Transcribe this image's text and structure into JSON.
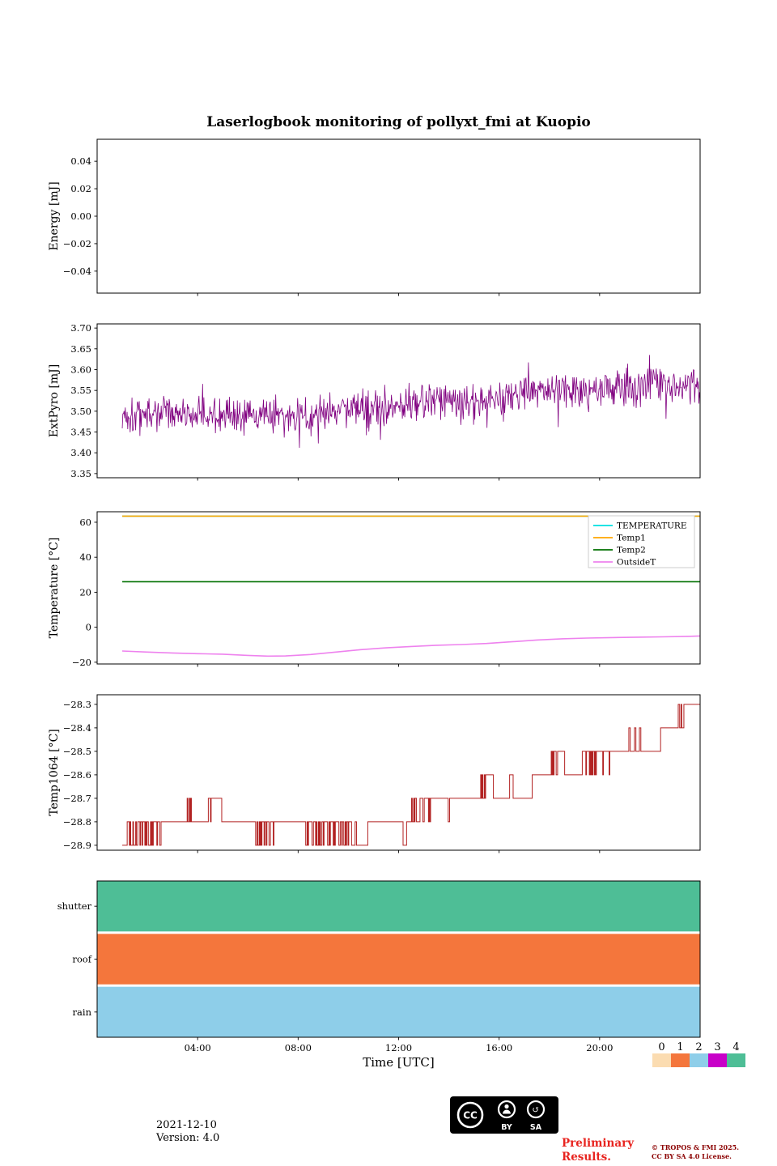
{
  "title": "Laserlogbook monitoring of pollyxt_fmi at Kuopio",
  "xaxis": {
    "label": "Time [UTC]",
    "range": [
      0,
      24
    ],
    "ticks": [
      4,
      8,
      12,
      16,
      20
    ],
    "tick_labels": [
      "04:00",
      "08:00",
      "12:00",
      "16:00",
      "20:00"
    ]
  },
  "chart_data": [
    {
      "type": "line",
      "name": "energy",
      "ylabel": "Energy [mJ]",
      "ylim": [
        -0.056,
        0.056
      ],
      "yticks": [
        0.04,
        0.02,
        0,
        -0.02,
        -0.04
      ],
      "ytick_labels": [
        "0.04",
        "0.02",
        "0.00",
        "−0.02",
        "−0.04"
      ],
      "series": []
    },
    {
      "type": "line",
      "name": "extpyro",
      "ylabel": "ExtPyro [mJ]",
      "ylim": [
        3.34,
        3.71
      ],
      "yticks": [
        3.7,
        3.65,
        3.6,
        3.55,
        3.5,
        3.45,
        3.4,
        3.35
      ],
      "ytick_labels": [
        "3.70",
        "3.65",
        "3.60",
        "3.55",
        "3.50",
        "3.45",
        "3.40",
        "3.35"
      ],
      "series": [
        {
          "name": "ExtPyro",
          "color": "#800080",
          "style": "noisy",
          "trend": [
            [
              1,
              3.49
            ],
            [
              3,
              3.5
            ],
            [
              5,
              3.49
            ],
            [
              7,
              3.485
            ],
            [
              8,
              3.49
            ],
            [
              10,
              3.505
            ],
            [
              12,
              3.52
            ],
            [
              14,
              3.525
            ],
            [
              16,
              3.535
            ],
            [
              18,
              3.55
            ],
            [
              20,
              3.555
            ],
            [
              22,
              3.565
            ],
            [
              24,
              3.56
            ]
          ],
          "noise_amp": 0.05,
          "spike_prob": 0.1,
          "spike_amp": 0.06,
          "points": 950,
          "seed": 1337,
          "value_range": [
            3.352,
            3.695
          ]
        }
      ]
    },
    {
      "type": "line",
      "name": "temperature",
      "ylabel": "Temperature [°C]",
      "ylim": [
        -21,
        66
      ],
      "yticks": [
        60,
        40,
        20,
        0,
        -20
      ],
      "ytick_labels": [
        "60",
        "40",
        "20",
        "0",
        "−20"
      ],
      "series": [
        {
          "name": "TEMPERATURE",
          "color": "#00dfe0",
          "style": "const",
          "value": 63.5
        },
        {
          "name": "Temp1",
          "color": "#ffa500",
          "style": "const",
          "value": 63.5
        },
        {
          "name": "Temp2",
          "color": "#007000",
          "style": "const",
          "value": 26.0
        },
        {
          "name": "OutsideT",
          "color": "#ee82ee",
          "style": "anchors",
          "anchors": [
            [
              1,
              -13.6
            ],
            [
              2,
              -14.2
            ],
            [
              3,
              -14.7
            ],
            [
              4,
              -15.1
            ],
            [
              5,
              -15.4
            ],
            [
              6,
              -16.1
            ],
            [
              6.8,
              -16.5
            ],
            [
              7.5,
              -16.4
            ],
            [
              8.5,
              -15.6
            ],
            [
              9.5,
              -14.2
            ],
            [
              10.5,
              -12.8
            ],
            [
              11.5,
              -11.8
            ],
            [
              12.5,
              -11.0
            ],
            [
              13.5,
              -10.3
            ],
            [
              14.5,
              -9.9
            ],
            [
              15.5,
              -9.3
            ],
            [
              16.5,
              -8.3
            ],
            [
              17.5,
              -7.3
            ],
            [
              18.5,
              -6.6
            ],
            [
              19.5,
              -6.2
            ],
            [
              20.5,
              -5.9
            ],
            [
              21.5,
              -5.7
            ],
            [
              22.5,
              -5.5
            ],
            [
              23.5,
              -5.2
            ],
            [
              24,
              -5.0
            ]
          ]
        }
      ],
      "legend": {
        "entries": [
          {
            "label": "TEMPERATURE",
            "color": "#00dfe0"
          },
          {
            "label": "Temp1",
            "color": "#ffa500"
          },
          {
            "label": "Temp2",
            "color": "#007000"
          },
          {
            "label": "OutsideT",
            "color": "#ee82ee"
          }
        ]
      }
    },
    {
      "type": "line",
      "name": "temp1064",
      "ylabel": "Temp1064 [°C]",
      "ylim": [
        -28.921,
        -28.259
      ],
      "yticks": [
        -28.3,
        -28.4,
        -28.5,
        -28.6,
        -28.7,
        -28.8,
        -28.9
      ],
      "ytick_labels": [
        "−28.3",
        "−28.4",
        "−28.5",
        "−28.6",
        "−28.7",
        "−28.8",
        "−28.9"
      ],
      "series": [
        {
          "name": "Temp1064",
          "color": "#b22222",
          "style": "steps",
          "seed": 99,
          "samples": 820,
          "segments": [
            [
              1.0,
              1.15,
              -28.9
            ],
            [
              1.15,
              2.6,
              -28.8,
              -28.9,
              0.45
            ],
            [
              2.6,
              3.55,
              -28.8
            ],
            [
              3.55,
              3.75,
              -28.8,
              -28.7,
              0.5
            ],
            [
              3.75,
              4.4,
              -28.8
            ],
            [
              4.4,
              4.55,
              -28.7,
              -28.8,
              0.3
            ],
            [
              4.55,
              4.95,
              -28.7
            ],
            [
              4.95,
              6.3,
              -28.8
            ],
            [
              6.3,
              7.05,
              -28.8,
              -28.9,
              0.4
            ],
            [
              7.05,
              8.3,
              -28.8
            ],
            [
              8.3,
              10.35,
              -28.8,
              -28.9,
              0.45
            ],
            [
              10.35,
              10.75,
              -28.9
            ],
            [
              10.75,
              12.15,
              -28.8
            ],
            [
              12.15,
              12.3,
              -28.9
            ],
            [
              12.3,
              12.5,
              -28.8
            ],
            [
              12.5,
              13.1,
              -28.7,
              -28.8,
              0.45
            ],
            [
              13.1,
              14.1,
              -28.7,
              -28.8,
              0.15
            ],
            [
              14.1,
              15.25,
              -28.7
            ],
            [
              15.25,
              15.45,
              -28.6,
              -28.7,
              0.4
            ],
            [
              15.45,
              15.75,
              -28.6
            ],
            [
              15.75,
              16.4,
              -28.7
            ],
            [
              16.4,
              16.55,
              -28.6
            ],
            [
              16.55,
              17.3,
              -28.7
            ],
            [
              17.3,
              18.05,
              -28.6
            ],
            [
              18.05,
              18.35,
              -28.5,
              -28.6,
              0.4
            ],
            [
              18.35,
              18.6,
              -28.5
            ],
            [
              18.6,
              19.3,
              -28.6
            ],
            [
              19.3,
              20.6,
              -28.5,
              -28.6,
              0.15
            ],
            [
              20.6,
              21.15,
              -28.5
            ],
            [
              21.15,
              21.65,
              -28.5,
              -28.4,
              0.4
            ],
            [
              21.65,
              22.4,
              -28.5
            ],
            [
              22.4,
              23.1,
              -28.4
            ],
            [
              23.1,
              23.35,
              -28.4,
              -28.3,
              0.3
            ],
            [
              23.35,
              24.0,
              -28.3
            ]
          ]
        }
      ]
    },
    {
      "type": "status",
      "name": "status",
      "categories": [
        "shutter",
        "roof",
        "rain"
      ],
      "values": [
        4,
        1,
        2
      ]
    }
  ],
  "colorbar": {
    "labels": [
      "0",
      "1",
      "2",
      "3",
      "4"
    ],
    "colors": [
      "#fbdcb1",
      "#f4763c",
      "#8ecee9",
      "#c800c8",
      "#4ebe96"
    ]
  },
  "footer": {
    "date": "2021-12-10",
    "version": "Version: 4.0",
    "preliminary_line1": "Preliminary",
    "preliminary_line2": "Results.",
    "copyright_line1": "© TROPOS & FMI 2025.",
    "copyright_line2": "CC BY SA 4.0 License.",
    "cc_badge": {
      "cc": "CC",
      "by": "BY",
      "sa": "SA"
    }
  }
}
